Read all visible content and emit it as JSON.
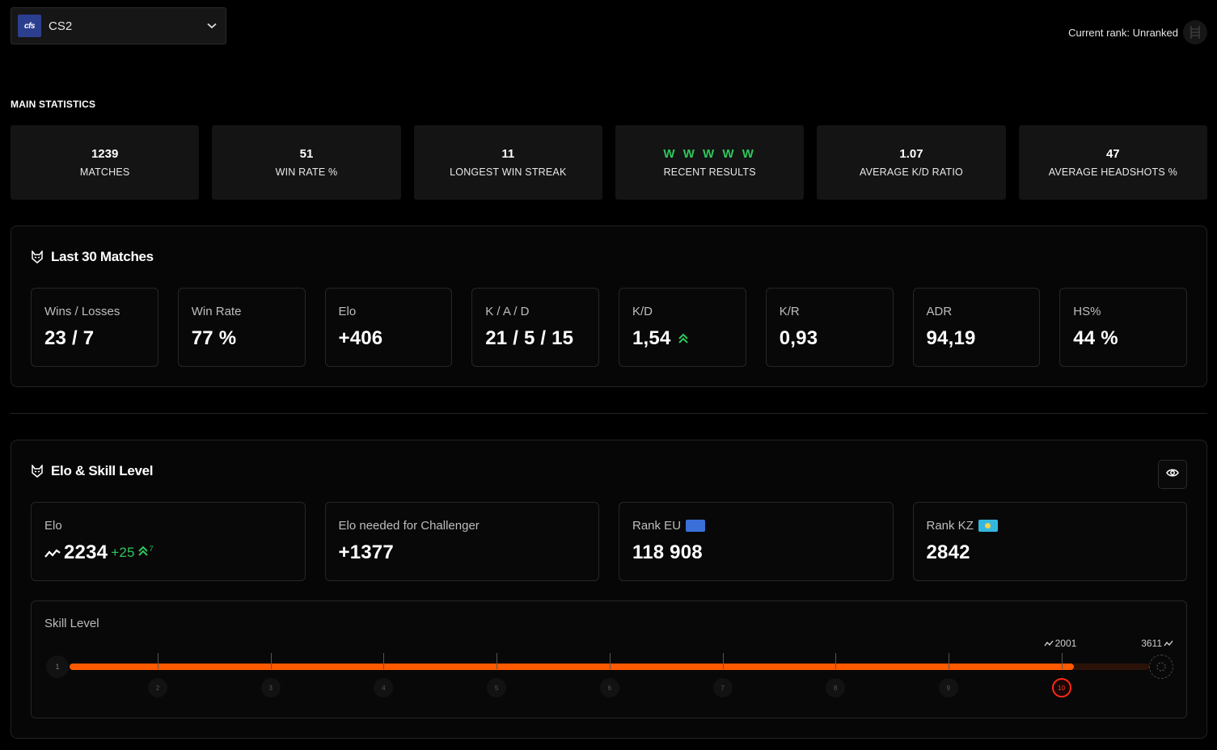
{
  "game_selector": {
    "logo_text": "cfs",
    "selected": "CS2"
  },
  "current_rank": {
    "text": "Current rank: Unranked"
  },
  "main_statistics": {
    "heading": "MAIN STATISTICS",
    "items": [
      {
        "value": "1239",
        "label": "MATCHES"
      },
      {
        "value": "51",
        "label": "WIN RATE %"
      },
      {
        "value": "11",
        "label": "LONGEST WIN STREAK"
      },
      {
        "value": "W W W W W",
        "label": "RECENT RESULTS"
      },
      {
        "value": "1.07",
        "label": "AVERAGE K/D RATIO"
      },
      {
        "value": "47",
        "label": "AVERAGE HEADSHOTS %"
      }
    ]
  },
  "last_matches": {
    "title": "Last 30 Matches",
    "cards": [
      {
        "label": "Wins / Losses",
        "value": "23 / 7"
      },
      {
        "label": "Win Rate",
        "value": "77 %"
      },
      {
        "label": "Elo",
        "value": "+406"
      },
      {
        "label": "K / A / D",
        "value": "21 / 5 / 15"
      },
      {
        "label": "K/D",
        "value": "1,54"
      },
      {
        "label": "K/R",
        "value": "0,93"
      },
      {
        "label": "ADR",
        "value": "94,19"
      },
      {
        "label": "HS%",
        "value": "44 %"
      }
    ]
  },
  "elo_skill": {
    "title": "Elo & Skill Level",
    "cards": [
      {
        "label": "Elo",
        "value": "2234",
        "delta": "+25",
        "delta_sup": "7"
      },
      {
        "label": "Elo needed for Challenger",
        "value": "+1377"
      },
      {
        "label": "Rank EU",
        "value": "118 908"
      },
      {
        "label": "Rank KZ",
        "value": "2842"
      }
    ],
    "skill": {
      "label": "Skill Level",
      "current_level": 10,
      "progress": 0.93,
      "levels": [
        "1",
        "2",
        "3",
        "4",
        "5",
        "6",
        "7",
        "8",
        "9",
        "10"
      ],
      "level_start_elo": "2001",
      "max_elo": "3611"
    }
  },
  "colors": {
    "accent": "#ff5a00",
    "win": "#2ec85a",
    "active_level": "#ff2a18"
  }
}
